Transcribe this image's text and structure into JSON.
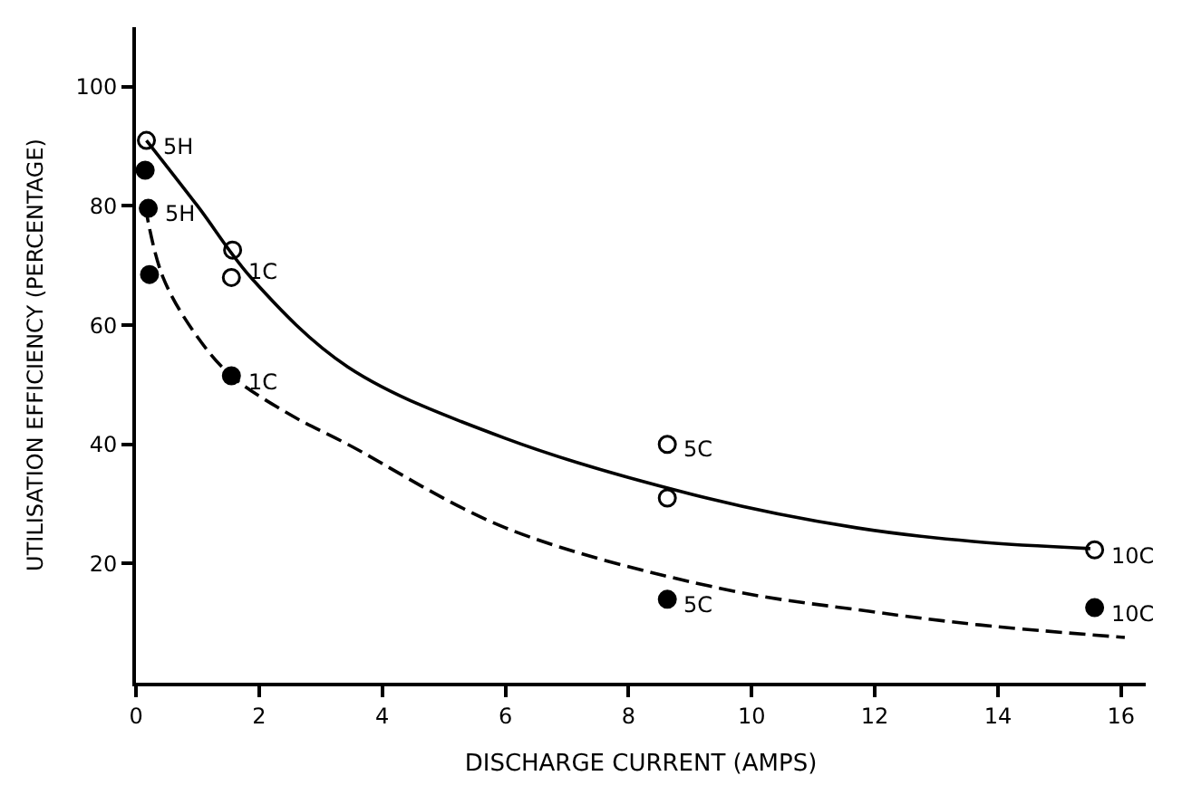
{
  "chart_data": {
    "type": "scatter",
    "xlabel": "DISCHARGE CURRENT (AMPS)",
    "ylabel": "UTILISATION EFFICIENCY (PERCENTAGE)",
    "xlim": [
      0,
      16.4
    ],
    "ylim": [
      0,
      110
    ],
    "xticks": [
      0,
      2,
      4,
      6,
      8,
      10,
      12,
      14,
      16
    ],
    "yticks": [
      20,
      40,
      60,
      80,
      100
    ],
    "legend": false,
    "series": [
      {
        "marker": "circle-open",
        "color": "#000000",
        "x": [
          0.17,
          1.57,
          1.55,
          8.63,
          8.63,
          15.57
        ],
        "values": [
          91,
          72.6,
          68,
          40,
          31,
          22.3
        ]
      },
      {
        "marker": "circle",
        "color": "#000000",
        "x": [
          0.15,
          0.2,
          0.22,
          1.55,
          8.63,
          15.57
        ],
        "values": [
          86,
          79.6,
          68.5,
          51.5,
          14,
          12.6
        ]
      },
      {
        "type": "line",
        "line_style": "solid",
        "color": "#000000",
        "x": [
          0.17,
          1.0,
          1.9,
          3.44,
          6,
          9.27,
          11.7,
          13.6,
          15.5
        ],
        "values": [
          91,
          80,
          67.6,
          53,
          41,
          31,
          26,
          23.7,
          22.5
        ]
      },
      {
        "type": "line",
        "line_style": "dashed",
        "color": "#000000",
        "x": [
          0.15,
          0.44,
          1.0,
          1.55,
          2.5,
          3.44,
          6,
          9.5,
          11.9,
          13.7,
          16.06
        ],
        "values": [
          80,
          68,
          58,
          51.5,
          45,
          40,
          26,
          15.8,
          12,
          9.7,
          7.6
        ]
      }
    ],
    "annotations": [
      {
        "text": "5H",
        "x": 0.17,
        "y": 91
      },
      {
        "text": "5H",
        "x": 0.2,
        "y": 79.6
      },
      {
        "text": "1C",
        "x": 1.57,
        "y": 70
      },
      {
        "text": "1C",
        "x": 1.55,
        "y": 51.5
      },
      {
        "text": "5C",
        "x": 8.63,
        "y": 40
      },
      {
        "text": "5C",
        "x": 8.63,
        "y": 14
      },
      {
        "text": "10C",
        "x": 15.57,
        "y": 22.3
      },
      {
        "text": "10C",
        "x": 15.57,
        "y": 12.6
      }
    ]
  }
}
